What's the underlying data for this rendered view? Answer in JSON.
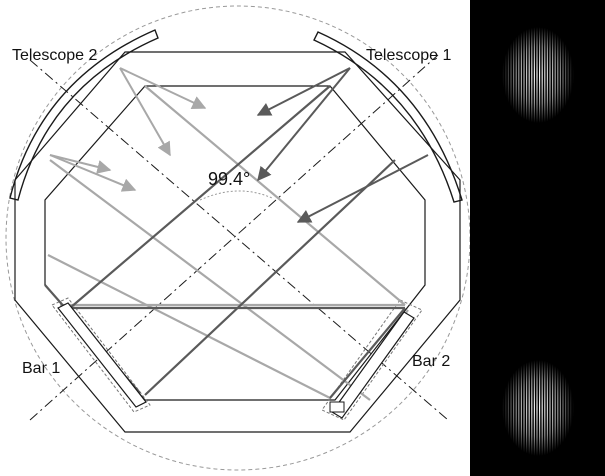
{
  "labels": {
    "telescope_1": "Telescope 1",
    "telescope_2": "Telescope 2",
    "bar_1": "Bar 1",
    "bar_2": "Bar 2",
    "angle": "99.4°"
  },
  "colors": {
    "background": "#ffffff",
    "outline": "#1a1a1a",
    "dashed_circle": "#999999",
    "ray_dark": "#5a5a5a",
    "ray_light": "#a8a8a8",
    "camera_bg": "#000000",
    "fringe": "#ffffff"
  }
}
